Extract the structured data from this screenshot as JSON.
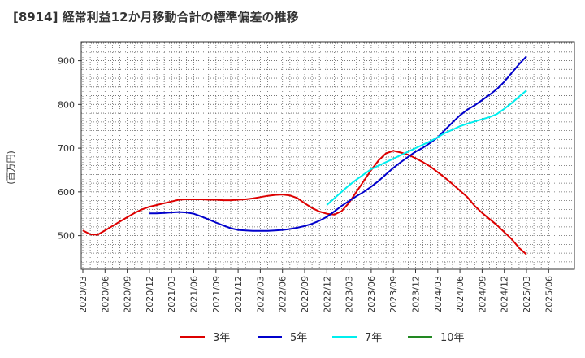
{
  "chart_data": {
    "type": "line",
    "title": "[8914]  経常利益12か月移動合計の標準偏差の推移",
    "ylabel": "(百万円)",
    "xlabel": "",
    "ylim": [
      423,
      942
    ],
    "yticks": [
      500,
      600,
      700,
      800,
      900
    ],
    "xticks": [
      "2020/03",
      "2020/06",
      "2020/09",
      "2020/12",
      "2021/03",
      "2021/06",
      "2021/09",
      "2021/12",
      "2022/03",
      "2022/06",
      "2022/09",
      "2022/12",
      "2023/03",
      "2023/06",
      "2023/09",
      "2023/12",
      "2024/03",
      "2024/06",
      "2024/09",
      "2024/12",
      "2025/03",
      "2025/06"
    ],
    "grid": true,
    "legend_position": "bottom",
    "series": [
      {
        "name": "3年",
        "color": "#dd0000",
        "x": [
          "2020/03",
          "2020/04",
          "2020/05",
          "2020/06",
          "2020/07",
          "2020/08",
          "2020/09",
          "2020/10",
          "2020/11",
          "2020/12",
          "2021/01",
          "2021/02",
          "2021/03",
          "2021/04",
          "2021/05",
          "2021/06",
          "2021/07",
          "2021/08",
          "2021/09",
          "2021/10",
          "2021/11",
          "2021/12",
          "2022/01",
          "2022/02",
          "2022/03",
          "2022/04",
          "2022/05",
          "2022/06",
          "2022/07",
          "2022/08",
          "2022/09",
          "2022/10",
          "2022/11",
          "2022/12",
          "2023/01",
          "2023/02",
          "2023/03",
          "2023/04",
          "2023/05",
          "2023/06",
          "2023/07",
          "2023/08",
          "2023/09",
          "2023/10",
          "2023/11",
          "2023/12",
          "2024/01",
          "2024/02",
          "2024/03",
          "2024/04",
          "2024/05",
          "2024/06",
          "2024/07",
          "2024/08",
          "2024/09",
          "2024/10",
          "2024/11",
          "2024/12",
          "2025/01",
          "2025/02",
          "2025/03"
        ],
        "y": [
          512,
          503,
          502,
          512,
          522,
          532,
          542,
          552,
          560,
          566,
          570,
          574,
          578,
          582,
          583,
          583,
          583,
          582,
          582,
          581,
          581,
          582,
          583,
          585,
          588,
          591,
          593,
          594,
          592,
          586,
          574,
          563,
          555,
          550,
          548,
          556,
          575,
          600,
          625,
          650,
          672,
          688,
          694,
          690,
          685,
          677,
          668,
          658,
          645,
          632,
          618,
          603,
          588,
          568,
          552,
          538,
          524,
          508,
          492,
          472,
          457
        ]
      },
      {
        "name": "5年",
        "color": "#0000cc",
        "x": [
          "2020/12",
          "2021/01",
          "2021/02",
          "2021/03",
          "2021/04",
          "2021/05",
          "2021/06",
          "2021/07",
          "2021/08",
          "2021/09",
          "2021/10",
          "2021/11",
          "2021/12",
          "2022/01",
          "2022/02",
          "2022/03",
          "2022/04",
          "2022/05",
          "2022/06",
          "2022/07",
          "2022/08",
          "2022/09",
          "2022/10",
          "2022/11",
          "2022/12",
          "2023/01",
          "2023/02",
          "2023/03",
          "2023/04",
          "2023/05",
          "2023/06",
          "2023/07",
          "2023/08",
          "2023/09",
          "2023/10",
          "2023/11",
          "2023/12",
          "2024/01",
          "2024/02",
          "2024/03",
          "2024/04",
          "2024/05",
          "2024/06",
          "2024/07",
          "2024/08",
          "2024/09",
          "2024/10",
          "2024/11",
          "2024/12",
          "2025/01",
          "2025/02",
          "2025/03"
        ],
        "y": [
          551,
          551,
          552,
          553,
          554,
          553,
          550,
          544,
          537,
          530,
          523,
          517,
          513,
          512,
          511,
          511,
          511,
          512,
          513,
          515,
          518,
          522,
          527,
          534,
          543,
          555,
          568,
          579,
          590,
          600,
          612,
          625,
          640,
          655,
          668,
          680,
          692,
          701,
          712,
          725,
          742,
          759,
          775,
          788,
          798,
          810,
          822,
          835,
          852,
          872,
          892,
          910
        ]
      },
      {
        "name": "7年",
        "color": "#00eeee",
        "x": [
          "2022/12",
          "2023/01",
          "2023/02",
          "2023/03",
          "2023/04",
          "2023/05",
          "2023/06",
          "2023/07",
          "2023/08",
          "2023/09",
          "2023/10",
          "2023/11",
          "2023/12",
          "2024/01",
          "2024/02",
          "2024/03",
          "2024/04",
          "2024/05",
          "2024/06",
          "2024/07",
          "2024/08",
          "2024/09",
          "2024/10",
          "2024/11",
          "2024/12",
          "2025/01",
          "2025/02",
          "2025/03"
        ],
        "y": [
          570,
          585,
          600,
          615,
          628,
          640,
          652,
          660,
          668,
          676,
          684,
          692,
          700,
          708,
          716,
          725,
          735,
          742,
          750,
          756,
          761,
          766,
          771,
          778,
          790,
          803,
          818,
          832
        ]
      },
      {
        "name": "10年",
        "color": "#228822",
        "x": [],
        "y": []
      }
    ]
  }
}
